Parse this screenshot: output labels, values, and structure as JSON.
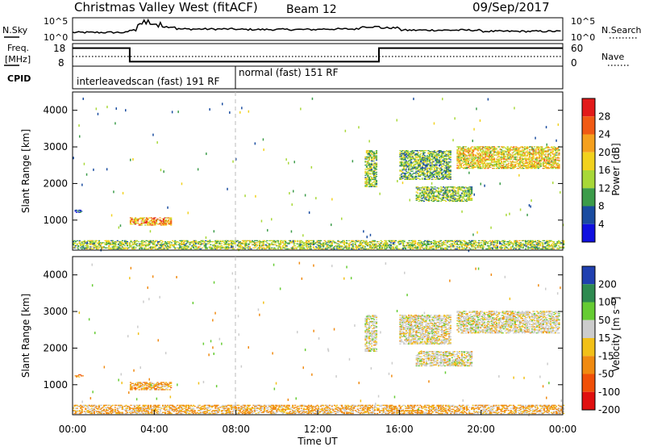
{
  "header": {
    "station": "Christmas Valley West (fitACF)",
    "beam": "Beam 12",
    "date": "09/Sep/2017"
  },
  "noise_panel": {
    "left_label": "N.Sky",
    "right_label": "N.Search",
    "left_ticks": [
      "10^5",
      "10^0"
    ],
    "right_ticks": [
      "10^5",
      "10^0"
    ]
  },
  "freq_panel": {
    "left_label_1": "Freq.",
    "left_label_2": "[MHz]",
    "left_ticks": [
      "18",
      "8"
    ],
    "right_label": "Nave",
    "right_ticks": [
      "60",
      "0"
    ]
  },
  "cpid_panel": {
    "label": "CPID",
    "segments": [
      {
        "text": "interleavedscan (fast) 191 RF",
        "start_hour": 0
      },
      {
        "text": "normal (fast) 151 RF",
        "start_hour": 8
      }
    ]
  },
  "power_panel": {
    "ylabel": "Slant Range [km]",
    "cbar_label": "Power [dB]",
    "cbar_ticks": [
      "28",
      "24",
      "20",
      "16",
      "12",
      "8",
      "4"
    ],
    "cbar_colors": [
      "#e21a1a",
      "#f05a14",
      "#f5a01e",
      "#f2d21e",
      "#a8d838",
      "#3c9c4a",
      "#1a4ca0",
      "#1010e0"
    ]
  },
  "velocity_panel": {
    "ylabel": "Slant Range [km]",
    "cbar_label": "Velocity [m s⁻¹]",
    "cbar_ticks": [
      "200",
      "100",
      "50",
      "15",
      "-15",
      "-50",
      "-100",
      "-200"
    ],
    "cbar_colors": [
      "#2040b0",
      "#2e8a50",
      "#66cc33",
      "#cccccc",
      "#f2c018",
      "#f08a10",
      "#f05008",
      "#e01010"
    ]
  },
  "x_axis": {
    "label": "Time UT",
    "ticks": [
      "00:00",
      "04:00",
      "08:00",
      "12:00",
      "16:00",
      "20:00",
      "00:00"
    ]
  },
  "chart_data": [
    {
      "type": "line",
      "x_range_hours": [
        0,
        24
      ],
      "series": [
        {
          "points": [
            [
              0,
              0.35
            ],
            [
              2.8,
              0.45
            ],
            [
              3.2,
              0.7
            ],
            [
              4.2,
              0.6
            ],
            [
              5,
              0.5
            ],
            [
              8,
              0.48
            ],
            [
              12,
              0.5
            ],
            [
              14,
              0.6
            ],
            [
              15,
              0.55
            ],
            [
              16,
              0.45
            ],
            [
              20,
              0.4
            ],
            [
              24,
              0.4
            ]
          ]
        }
      ],
      "ylim": [
        0,
        1
      ]
    },
    {
      "type": "line",
      "ylim": [
        8,
        18
      ],
      "series": [
        {
          "points": [
            [
              0,
              16
            ],
            [
              2.8,
              16
            ],
            [
              2.8,
              10
            ],
            [
              15,
              10
            ],
            [
              15,
              16
            ],
            [
              24,
              16
            ]
          ]
        }
      ]
    },
    {
      "type": "heatmap",
      "xlabel": "Time UT",
      "ylabel": "Slant Range [km]",
      "xlim": [
        0,
        24
      ],
      "ylim": [
        180,
        4500
      ],
      "yticks": [
        1000,
        2000,
        3000,
        4000
      ],
      "colorbar": {
        "label": "Power [dB]",
        "range": [
          0,
          32
        ]
      },
      "regions": [
        {
          "t": [
            0,
            24
          ],
          "r": [
            200,
            450
          ],
          "v": 14
        },
        {
          "t": [
            2.8,
            4.8
          ],
          "r": [
            850,
            1050
          ],
          "v": 22
        },
        {
          "t": [
            0.1,
            0.5
          ],
          "r": [
            1200,
            1280
          ],
          "v": 6
        },
        {
          "t": [
            14.3,
            14.9
          ],
          "r": [
            1900,
            2900
          ],
          "v": 14
        },
        {
          "t": [
            16,
            18.5
          ],
          "r": [
            2100,
            2900
          ],
          "v": 12
        },
        {
          "t": [
            16.8,
            19.5
          ],
          "r": [
            1500,
            1900
          ],
          "v": 13
        },
        {
          "t": [
            18.8,
            23.8
          ],
          "r": [
            2400,
            3000
          ],
          "v": 18
        }
      ]
    },
    {
      "type": "heatmap",
      "xlabel": "Time UT",
      "ylabel": "Slant Range [km]",
      "xlim": [
        0,
        24
      ],
      "ylim": [
        180,
        4500
      ],
      "yticks": [
        1000,
        2000,
        3000,
        4000
      ],
      "colorbar": {
        "label": "Velocity [m s⁻¹]",
        "range": [
          -200,
          200
        ]
      },
      "regions": [
        {
          "t": [
            0,
            24
          ],
          "r": [
            200,
            450
          ],
          "v": -30
        },
        {
          "t": [
            2.8,
            4.8
          ],
          "r": [
            850,
            1050
          ],
          "v": -40
        },
        {
          "t": [
            0.1,
            0.5
          ],
          "r": [
            1200,
            1280
          ],
          "v": -60
        },
        {
          "t": [
            14.3,
            14.9
          ],
          "r": [
            1900,
            2900
          ],
          "v": 5
        },
        {
          "t": [
            16,
            18.5
          ],
          "r": [
            2100,
            2900
          ],
          "v": 0
        },
        {
          "t": [
            16.8,
            19.5
          ],
          "r": [
            1500,
            1900
          ],
          "v": 0
        },
        {
          "t": [
            18.8,
            23.8
          ],
          "r": [
            2400,
            3000
          ],
          "v": 0
        }
      ]
    }
  ]
}
